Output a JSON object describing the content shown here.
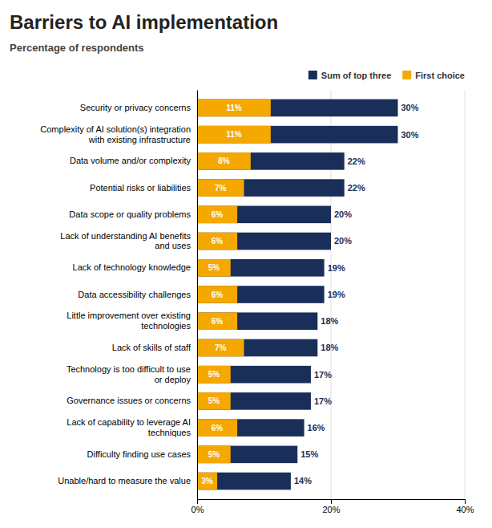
{
  "chart_data": {
    "type": "bar",
    "orientation": "horizontal",
    "title": "Barriers to AI implementation",
    "subtitle": "Percentage of respondents",
    "categories": [
      "Security or privacy concerns",
      "Complexity of AI solution(s) integration\nwith existing infrastructure",
      "Data volume and/or complexity",
      "Potential risks or liabilities",
      "Data scope or quality problems",
      "Lack of understanding AI benefits\nand uses",
      "Lack of technology knowledge",
      "Data accessibility challenges",
      "Little improvement over existing\ntechnologies",
      "Lack of skills of staff",
      "Technology is too difficult to use\nor deploy",
      "Governance issues or concerns",
      "Lack of capability to leverage AI\ntechniques",
      "Difficulty finding use cases",
      "Unable/hard to measure the value"
    ],
    "series": [
      {
        "name": "Sum of top three",
        "color": "#1a2e5a",
        "values": [
          30,
          30,
          22,
          22,
          20,
          20,
          19,
          19,
          18,
          18,
          17,
          17,
          16,
          15,
          14
        ],
        "value_labels": [
          "30%",
          "30%",
          "22%",
          "22%",
          "20%",
          "20%",
          "19%",
          "19%",
          "18%",
          "18%",
          "17%",
          "17%",
          "16%",
          "15%",
          "14%"
        ]
      },
      {
        "name": "First choice",
        "color": "#f5a800",
        "values": [
          11,
          11,
          8,
          7,
          6,
          6,
          5,
          6,
          6,
          7,
          5,
          5,
          6,
          5,
          3
        ],
        "value_labels": [
          "11%",
          "11%",
          "8%",
          "7%",
          "6%",
          "6%",
          "5%",
          "6%",
          "6%",
          "7%",
          "5%",
          "5%",
          "6%",
          "5%",
          "3%"
        ]
      }
    ],
    "xlim": [
      0,
      40
    ],
    "xticks": [
      {
        "value": 0,
        "label": "0%"
      },
      {
        "value": 20,
        "label": "20%"
      },
      {
        "value": 40,
        "label": "40%"
      }
    ],
    "grid": true,
    "legend": "upper right",
    "data_labels": true
  }
}
